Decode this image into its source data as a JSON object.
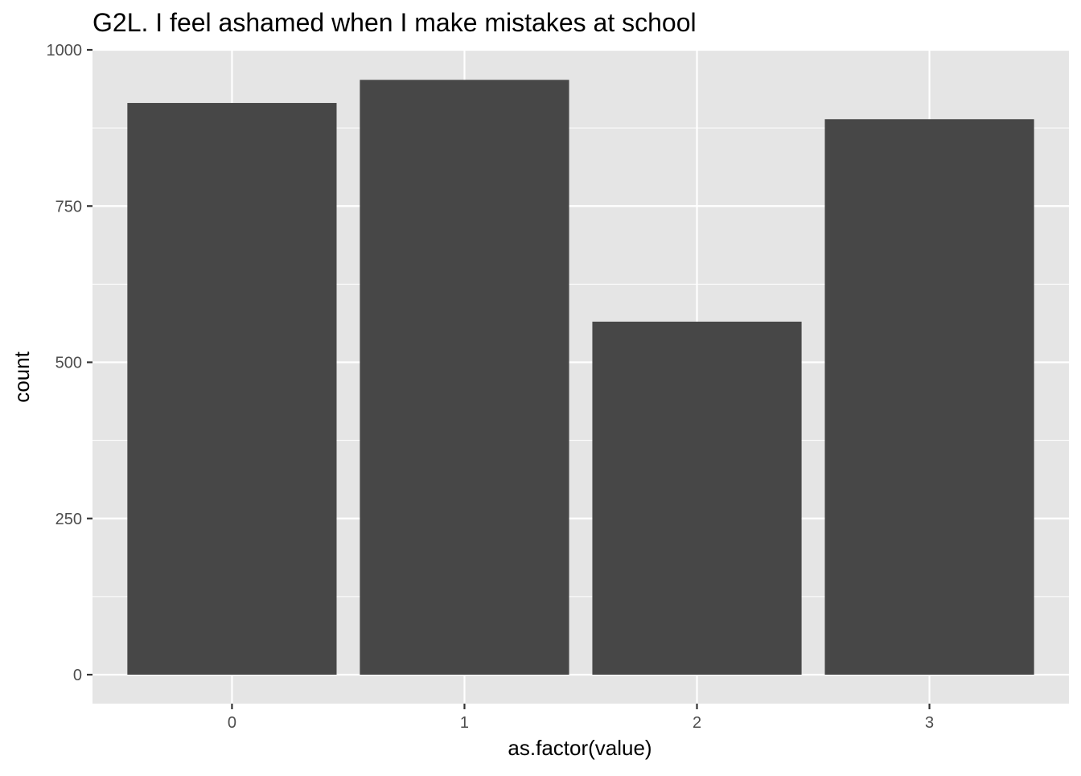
{
  "chart_data": {
    "type": "bar",
    "title": "G2L. I feel ashamed when I make mistakes at school",
    "xlabel": "as.factor(value)",
    "ylabel": "count",
    "categories": [
      "0",
      "1",
      "2",
      "3"
    ],
    "values": [
      915,
      952,
      565,
      889
    ],
    "ylim": [
      -47,
      1000
    ],
    "yticks": [
      0,
      250,
      500,
      750,
      1000
    ],
    "grid": true,
    "legend": "none",
    "colors": {
      "bar": "#474747",
      "panel": "#e5e5e5",
      "grid": "#ffffff",
      "tick_text": "#4d4d4d",
      "tick_mark": "#333333"
    }
  }
}
